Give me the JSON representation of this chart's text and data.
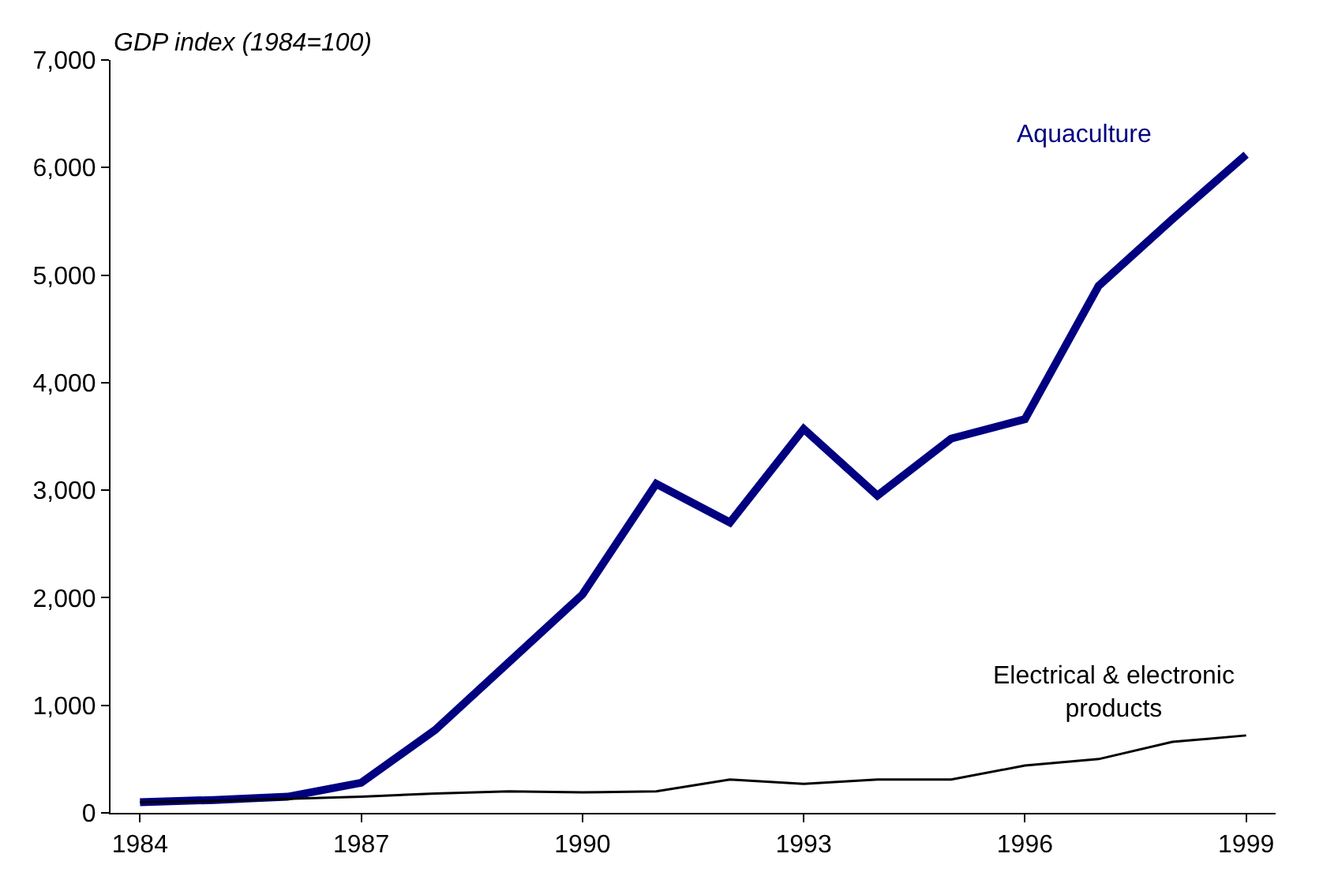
{
  "chart_data": {
    "type": "line",
    "ylabel": "GDP index (1984=100)",
    "x": [
      1984,
      1985,
      1986,
      1987,
      1988,
      1989,
      1990,
      1991,
      1992,
      1993,
      1994,
      1995,
      1996,
      1997,
      1998,
      1999
    ],
    "series": [
      {
        "name": "Aquaculture",
        "color": "#000080",
        "values": [
          100,
          120,
          150,
          280,
          770,
          1400,
          2030,
          3060,
          2700,
          3570,
          2950,
          3480,
          3660,
          4900,
          5520,
          6120
        ]
      },
      {
        "name": "Electrical & electronic products",
        "color": "#000000",
        "values": [
          100,
          110,
          130,
          150,
          180,
          200,
          190,
          200,
          310,
          270,
          310,
          310,
          440,
          500,
          660,
          720
        ]
      }
    ],
    "xlim": [
      1983.6,
      1999.4
    ],
    "xticks": [
      1984,
      1987,
      1990,
      1993,
      1996,
      1999
    ],
    "ylim": [
      0,
      7000
    ],
    "yticks": [
      {
        "value": 0,
        "label": "0"
      },
      {
        "value": 1000,
        "label": "1,000"
      },
      {
        "value": 2000,
        "label": "2,000"
      },
      {
        "value": 3000,
        "label": "3,000"
      },
      {
        "value": 4000,
        "label": "4,000"
      },
      {
        "value": 5000,
        "label": "5,000"
      },
      {
        "value": 6000,
        "label": "6,000"
      },
      {
        "value": 7000,
        "label": "7,000"
      }
    ],
    "legend": false,
    "marker": "none",
    "line_style": "solid"
  }
}
